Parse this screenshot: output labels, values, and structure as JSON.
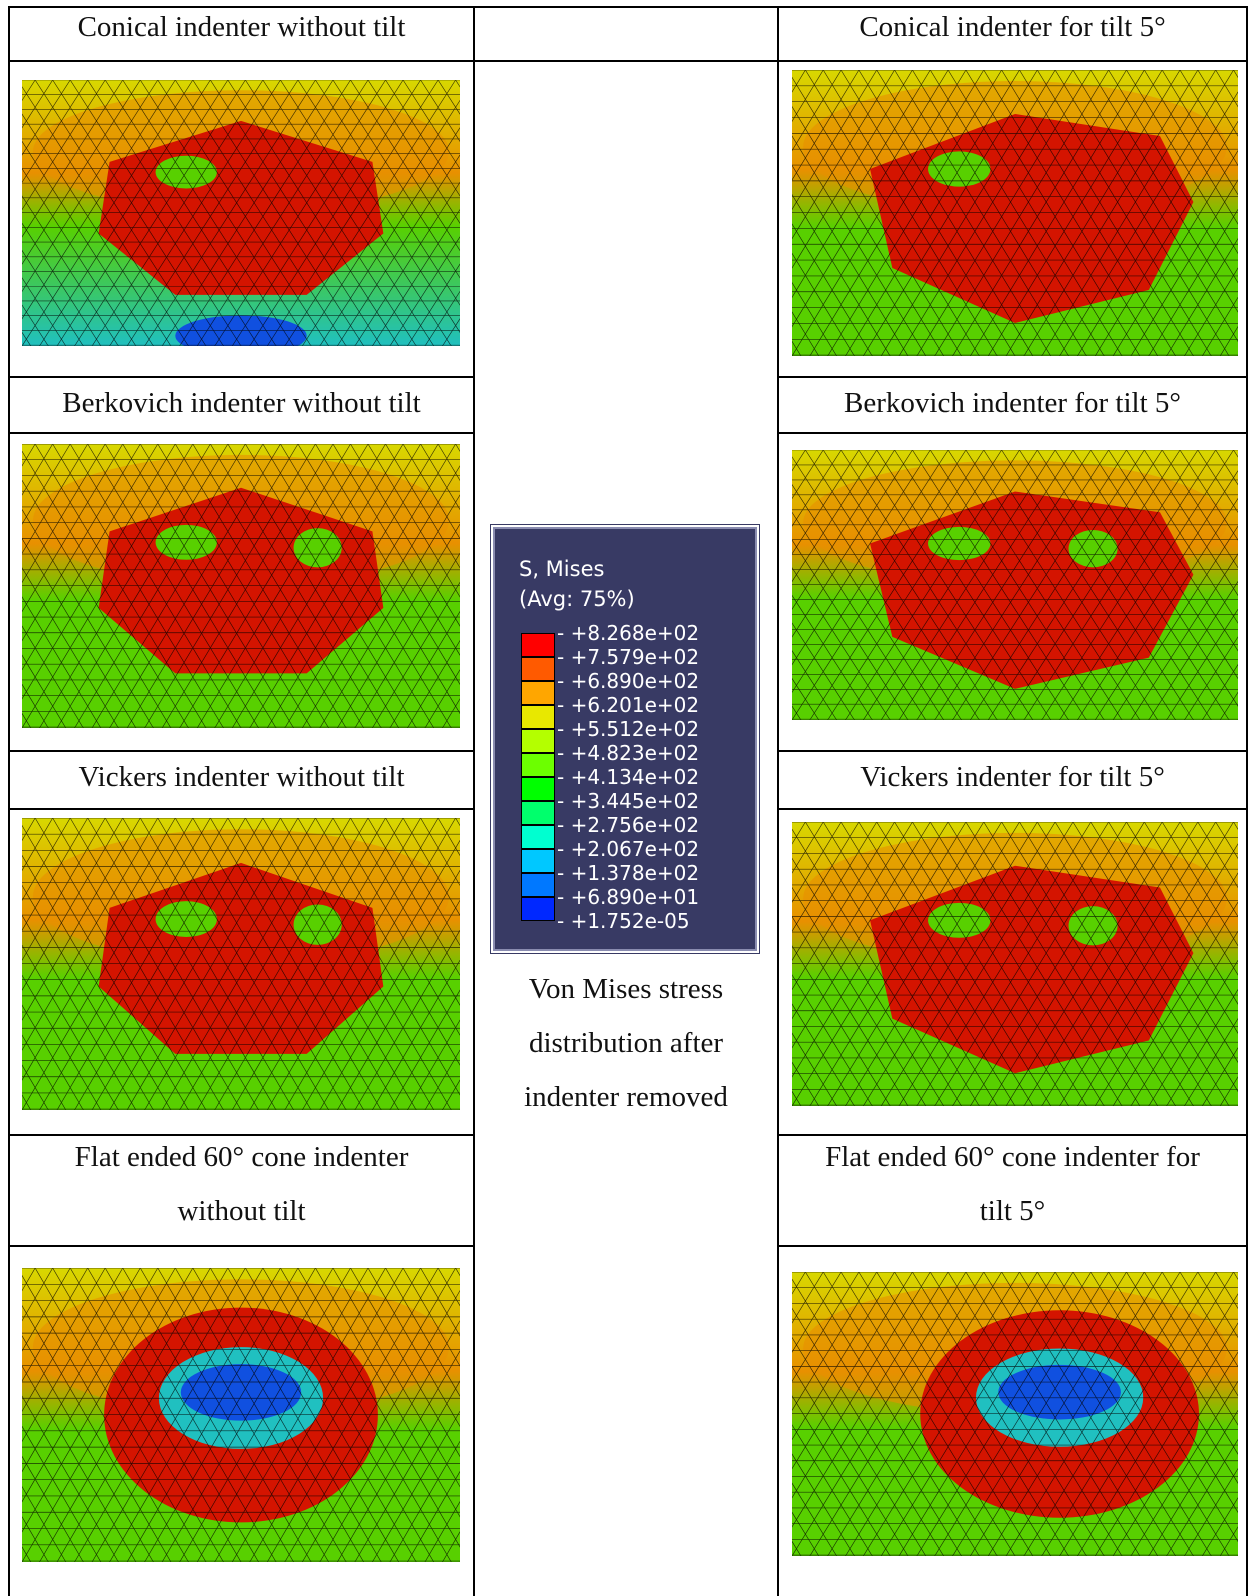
{
  "captions": {
    "conical_no_tilt": "Conical indenter without tilt",
    "conical_tilt": "Conical indenter for tilt 5°",
    "berkovich_no_tilt": "Berkovich indenter without tilt",
    "berkovich_tilt": "Berkovich indenter for tilt 5°",
    "vickers_no_tilt": "Vickers indenter without tilt",
    "vickers_tilt": "Vickers indenter for tilt 5°",
    "flat_no_tilt_line1": "Flat ended 60° cone indenter",
    "flat_no_tilt_line2": "without tilt",
    "flat_tilt_line1": "Flat ended 60° cone indenter for",
    "flat_tilt_line2": "tilt 5°"
  },
  "legend": {
    "title": "S, Mises",
    "subtitle": "(Avg: 75%)",
    "values": [
      "+8.268e+02",
      "+7.579e+02",
      "+6.890e+02",
      "+6.201e+02",
      "+5.512e+02",
      "+4.823e+02",
      "+4.134e+02",
      "+3.445e+02",
      "+2.756e+02",
      "+2.067e+02",
      "+1.378e+02",
      "+6.890e+01",
      "+1.752e-05"
    ],
    "colors": [
      "#ff0000",
      "#ff5a00",
      "#ffa600",
      "#e8e800",
      "#b4ff00",
      "#6cff00",
      "#00ff00",
      "#00ff6c",
      "#00ffd0",
      "#00c8ff",
      "#0078ff",
      "#0028ff",
      "#0000ff"
    ]
  },
  "center_caption": {
    "line1": "Von Mises stress",
    "line2": "distribution after",
    "line3": "indenter removed"
  },
  "plot_colors": {
    "outer": "#b8e000",
    "mid_yellow": "#d8d800",
    "orange": "#e89000",
    "green": "#58d000",
    "red": "#d41400",
    "cyan": "#20c0c0",
    "blue": "#1050e0"
  }
}
